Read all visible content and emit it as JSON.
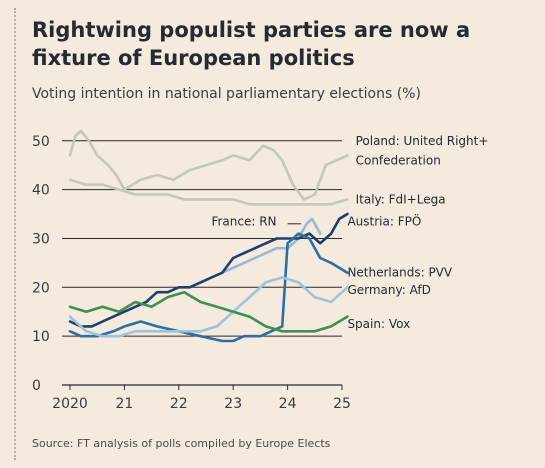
{
  "title": "Rightwing populist parties are now a fixture of European politics",
  "subtitle": "Voting intention in national parliamentary elections (%)",
  "source": "Source: FT analysis of polls compiled by Europe Elects",
  "chart_data": {
    "type": "line",
    "title": "Rightwing populist parties are now a fixture of European politics",
    "ylabel": "Voting intention in national parliamentary elections (%)",
    "xlim": [
      2020,
      2025
    ],
    "ylim": [
      0,
      52
    ],
    "x_ticks": [
      2020,
      2021,
      2022,
      2023,
      2024,
      2025
    ],
    "x_tick_labels": [
      "2020",
      "21",
      "22",
      "23",
      "24",
      "25"
    ],
    "y_ticks": [
      0,
      10,
      20,
      30,
      40,
      50
    ],
    "grid": "horizontal",
    "series": [
      {
        "name": "Poland: United Right+ Confederation",
        "color": "#c3c9b6",
        "x": [
          2020.0,
          2020.1,
          2020.2,
          2020.35,
          2020.5,
          2020.7,
          2020.85,
          2021.0,
          2021.3,
          2021.6,
          2021.9,
          2022.2,
          2022.5,
          2022.8,
          2023.0,
          2023.3,
          2023.55,
          2023.75,
          2023.9,
          2024.1,
          2024.3,
          2024.5,
          2024.7,
          2024.9,
          2025.1
        ],
        "y": [
          47,
          51,
          52,
          50,
          47,
          45,
          43,
          40,
          42,
          43,
          42,
          44,
          45,
          46,
          47,
          46,
          49,
          48,
          46,
          41,
          38,
          39,
          45,
          46,
          47
        ]
      },
      {
        "name": "Italy: FdI+Lega",
        "color": "#c3c9b6",
        "x": [
          2020.0,
          2020.3,
          2020.6,
          2020.9,
          2021.2,
          2021.5,
          2021.8,
          2022.1,
          2022.4,
          2022.7,
          2023.0,
          2023.3,
          2023.6,
          2023.9,
          2024.2,
          2024.5,
          2024.8,
          2025.1
        ],
        "y": [
          42,
          41,
          41,
          40,
          39,
          39,
          39,
          38,
          38,
          38,
          38,
          37,
          37,
          37,
          37,
          37,
          37,
          38
        ]
      },
      {
        "name": "France: RN",
        "color": "#9bb8d3",
        "x": [
          2022.4,
          2022.6,
          2022.8,
          2023.0,
          2023.2,
          2023.4,
          2023.6,
          2023.8,
          2024.0,
          2024.2,
          2024.35,
          2024.45,
          2024.6
        ],
        "y": [
          21,
          22,
          23,
          24,
          25,
          26,
          27,
          28,
          28,
          30,
          33,
          34,
          31
        ]
      },
      {
        "name": "Austria: FPÖ",
        "color": "#1f3f6e",
        "x": [
          2020.0,
          2020.2,
          2020.4,
          2020.6,
          2020.8,
          2021.0,
          2021.2,
          2021.4,
          2021.6,
          2021.8,
          2022.0,
          2022.2,
          2022.4,
          2022.6,
          2022.8,
          2023.0,
          2023.2,
          2023.4,
          2023.6,
          2023.8,
          2024.0,
          2024.2,
          2024.4,
          2024.6,
          2024.8,
          2024.95,
          2025.1
        ],
        "y": [
          13,
          12,
          12,
          13,
          14,
          15,
          16,
          17,
          19,
          19,
          20,
          20,
          21,
          22,
          23,
          26,
          27,
          28,
          29,
          30,
          30,
          30,
          31,
          29,
          31,
          34,
          35
        ]
      },
      {
        "name": "Netherlands: PVV",
        "color": "#2f6f9f",
        "x": [
          2020.0,
          2020.2,
          2020.5,
          2020.8,
          2021.0,
          2021.3,
          2021.6,
          2022.0,
          2022.4,
          2022.8,
          2023.0,
          2023.2,
          2023.5,
          2023.7,
          2023.9,
          2024.0,
          2024.2,
          2024.4,
          2024.6,
          2024.8,
          2025.1
        ],
        "y": [
          11,
          10,
          10,
          11,
          12,
          13,
          12,
          11,
          10,
          9,
          9,
          10,
          10,
          11,
          12,
          29,
          31,
          30,
          26,
          25,
          23
        ]
      },
      {
        "name": "Germany: AfD",
        "color": "#9ec3dc",
        "x": [
          2020.0,
          2020.3,
          2020.6,
          2020.9,
          2021.2,
          2021.5,
          2021.8,
          2022.1,
          2022.4,
          2022.7,
          2023.0,
          2023.3,
          2023.6,
          2023.9,
          2024.2,
          2024.5,
          2024.8,
          2025.1
        ],
        "y": [
          14,
          11,
          10,
          10,
          11,
          11,
          11,
          11,
          11,
          12,
          15,
          18,
          21,
          22,
          21,
          18,
          17,
          20
        ]
      },
      {
        "name": "Spain: Vox",
        "color": "#3f8f4f",
        "x": [
          2020.0,
          2020.3,
          2020.6,
          2020.9,
          2021.2,
          2021.5,
          2021.8,
          2022.1,
          2022.4,
          2022.7,
          2023.0,
          2023.3,
          2023.6,
          2023.9,
          2024.2,
          2024.5,
          2024.8,
          2025.1
        ],
        "y": [
          16,
          15,
          16,
          15,
          17,
          16,
          18,
          19,
          17,
          16,
          15,
          14,
          12,
          11,
          11,
          11,
          12,
          14
        ]
      }
    ],
    "labels": [
      {
        "text": "Poland: United Right+",
        "x": 2025.25,
        "y": 50
      },
      {
        "text": "Confederation",
        "x": 2025.25,
        "y": 46
      },
      {
        "text": "Italy: FdI+Lega",
        "x": 2025.25,
        "y": 38
      },
      {
        "text": "France: RN",
        "x": 2022.6,
        "y": 33.5
      },
      {
        "text": "Austria: FPÖ",
        "x": 2025.1,
        "y": 33.5
      },
      {
        "text": "Netherlands: PVV",
        "x": 2025.1,
        "y": 23
      },
      {
        "text": "Germany: AfD",
        "x": 2025.1,
        "y": 19.5
      },
      {
        "text": "Spain: Vox",
        "x": 2025.1,
        "y": 12.5
      }
    ]
  }
}
